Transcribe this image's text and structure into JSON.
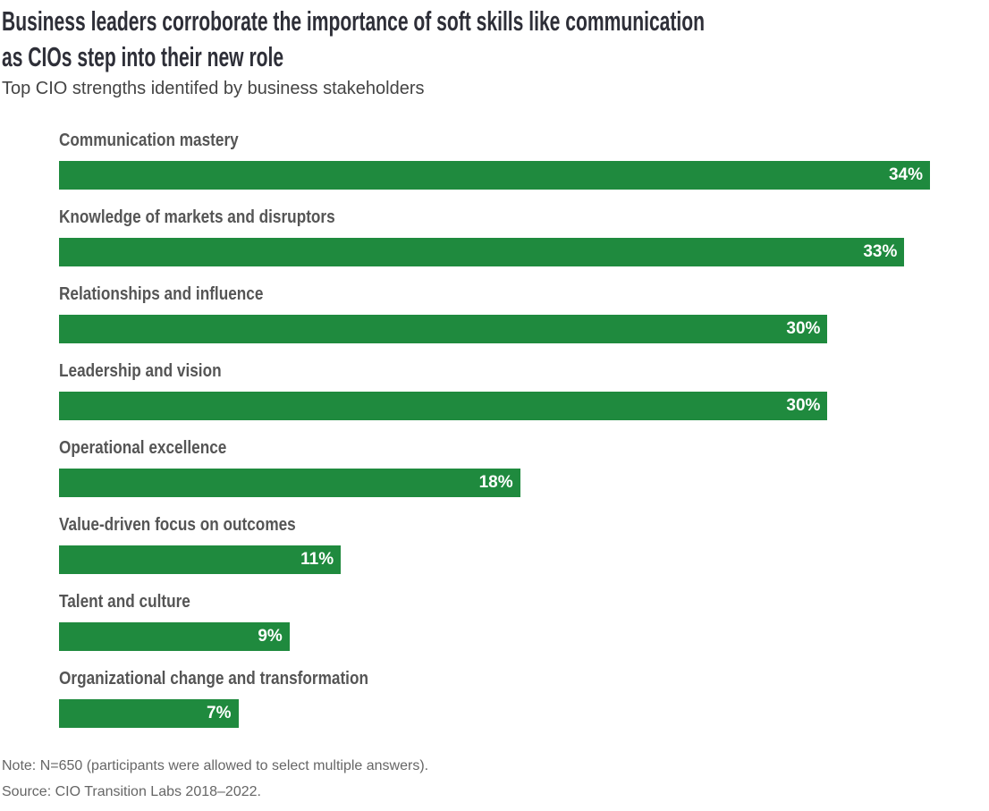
{
  "chart_data": {
    "type": "bar",
    "orientation": "horizontal",
    "title": "Business leaders corroborate the importance of soft skills like communication as CIOs step into their new role",
    "title_lines": [
      "Business leaders corroborate the importance of soft skills like communication",
      "as CIOs step into their new role"
    ],
    "subtitle": "Top CIO strengths identifed by business stakeholders",
    "categories": [
      "Communication mastery",
      "Knowledge of markets and disruptors",
      "Relationships and influence",
      "Leadership and vision",
      "Operational excellence",
      "Value-driven focus on outcomes",
      "Talent and culture",
      "Organizational change and transformation"
    ],
    "values": [
      34,
      33,
      30,
      30,
      18,
      11,
      9,
      7
    ],
    "value_labels": [
      "34%",
      "33%",
      "30%",
      "30%",
      "18%",
      "11%",
      "9%",
      "7%"
    ],
    "unit": "%",
    "bar_color": "#1f8a3e",
    "grid": false,
    "axes_shown": false,
    "note": "Note: N=650 (participants were allowed to select multiple answers).",
    "source": "Source: CIO Transition Labs 2018–2022."
  }
}
